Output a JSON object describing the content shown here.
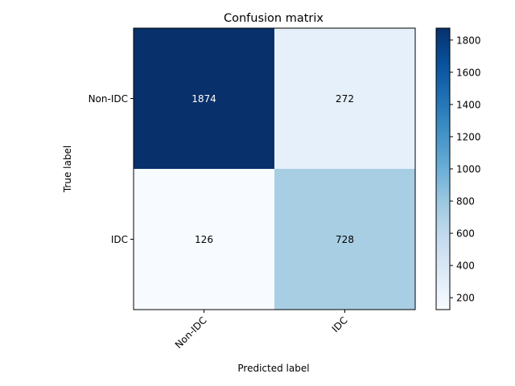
{
  "chart_data": {
    "type": "heatmap",
    "title": "Confusion matrix",
    "xlabel": "Predicted label",
    "ylabel": "True label",
    "x_categories": [
      "Non-IDC",
      "IDC"
    ],
    "y_categories": [
      "Non-IDC",
      "IDC"
    ],
    "values": [
      [
        1874,
        272
      ],
      [
        126,
        728
      ]
    ],
    "colormap": "Blues",
    "color_range": [
      126,
      1874
    ],
    "colorbar_ticks": [
      200,
      400,
      600,
      800,
      1000,
      1200,
      1400,
      1600,
      1800
    ],
    "xtick_rotation_deg": 45
  }
}
